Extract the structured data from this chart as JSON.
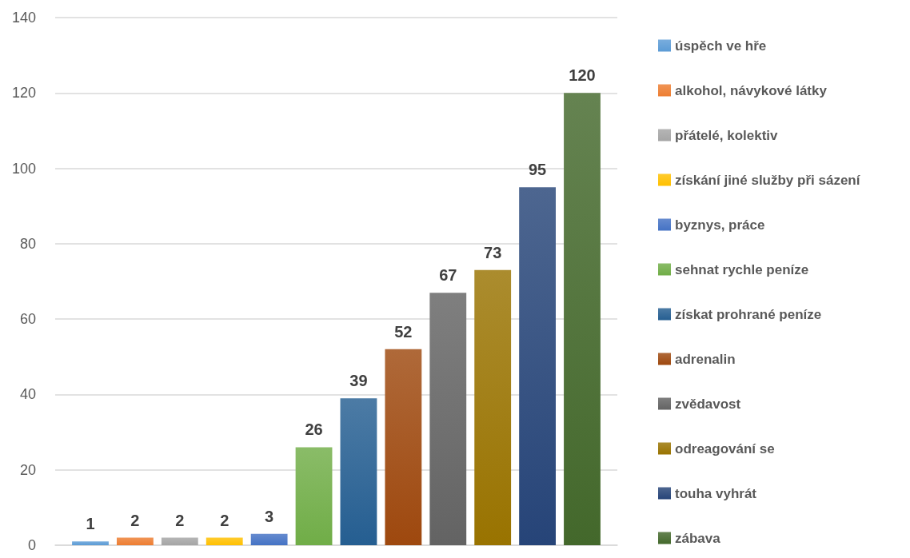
{
  "chart_data": {
    "type": "bar",
    "categories": [
      null
    ],
    "series": [
      {
        "name": "úspěch ve hře",
        "color": "#5b9bd5",
        "values": [
          1
        ]
      },
      {
        "name": "alkohol, návykové látky",
        "color": "#ed7d31",
        "values": [
          2
        ]
      },
      {
        "name": "přátelé, kolektiv",
        "color": "#a5a5a5",
        "values": [
          2
        ]
      },
      {
        "name": "získání jiné služby při sázení",
        "color": "#ffc000",
        "values": [
          2
        ]
      },
      {
        "name": "byznys, práce",
        "color": "#4472c4",
        "values": [
          3
        ]
      },
      {
        "name": "sehnat rychle peníze",
        "color": "#70ad47",
        "values": [
          26
        ]
      },
      {
        "name": "získat prohrané peníze",
        "color": "#255e91",
        "values": [
          39
        ]
      },
      {
        "name": "adrenalin",
        "color": "#9e480e",
        "values": [
          52
        ]
      },
      {
        "name": "zvědavost",
        "color": "#636363",
        "values": [
          67
        ]
      },
      {
        "name": "odreagování se",
        "color": "#997300",
        "values": [
          73
        ]
      },
      {
        "name": "touha vyhrát",
        "color": "#264478",
        "values": [
          95
        ]
      },
      {
        "name": "zábava",
        "color": "#43682b",
        "values": [
          120
        ]
      }
    ],
    "ylim": [
      0,
      140
    ],
    "yticks": [
      0,
      20,
      40,
      60,
      80,
      100,
      120,
      140
    ],
    "grid": "y",
    "legend": "right",
    "data_labels": true,
    "tick_labels": "y"
  }
}
